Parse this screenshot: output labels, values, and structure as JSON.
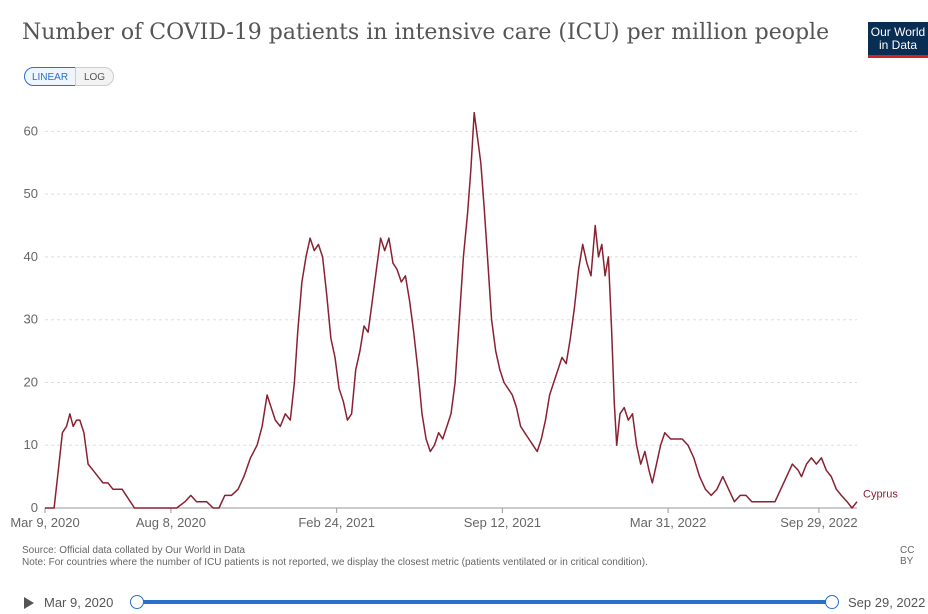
{
  "header": {
    "title": "Number of COVID-19 patients in intensive care (ICU) per million people",
    "logo_line1": "Our World",
    "logo_line2": "in Data",
    "scale_linear": "LINEAR",
    "scale_log": "LOG"
  },
  "colors": {
    "series": "#8a2131",
    "accent": "#2a70c9",
    "logo_bg": "#0a2e53",
    "logo_stripe": "#ce261e"
  },
  "chart_data": {
    "type": "line",
    "title": "Number of COVID-19 patients in intensive care (ICU) per million people",
    "ylim": [
      0,
      65
    ],
    "y_ticks": [
      0,
      10,
      20,
      30,
      40,
      50,
      60
    ],
    "x_ticks": [
      "Mar 9, 2020",
      "Aug 8, 2020",
      "Feb 24, 2021",
      "Sep 12, 2021",
      "Mar 31, 2022",
      "Sep 29, 2022"
    ],
    "grid": true,
    "series": [
      {
        "name": "Cyprus",
        "points": [
          [
            "2020-03-09",
            0
          ],
          [
            "2020-03-20",
            0
          ],
          [
            "2020-03-25",
            6
          ],
          [
            "2020-03-30",
            12
          ],
          [
            "2020-04-04",
            13
          ],
          [
            "2020-04-08",
            15
          ],
          [
            "2020-04-12",
            13
          ],
          [
            "2020-04-16",
            14
          ],
          [
            "2020-04-20",
            14
          ],
          [
            "2020-04-25",
            12
          ],
          [
            "2020-04-30",
            7
          ],
          [
            "2020-05-06",
            6
          ],
          [
            "2020-05-12",
            5
          ],
          [
            "2020-05-18",
            4
          ],
          [
            "2020-05-24",
            4
          ],
          [
            "2020-05-30",
            3
          ],
          [
            "2020-06-10",
            3
          ],
          [
            "2020-06-15",
            2
          ],
          [
            "2020-06-20",
            1
          ],
          [
            "2020-06-25",
            0
          ],
          [
            "2020-07-20",
            0
          ],
          [
            "2020-08-15",
            0
          ],
          [
            "2020-08-25",
            1
          ],
          [
            "2020-09-01",
            2
          ],
          [
            "2020-09-08",
            1
          ],
          [
            "2020-09-20",
            1
          ],
          [
            "2020-09-28",
            0
          ],
          [
            "2020-10-05",
            0
          ],
          [
            "2020-10-12",
            2
          ],
          [
            "2020-10-20",
            2
          ],
          [
            "2020-10-28",
            3
          ],
          [
            "2020-11-04",
            5
          ],
          [
            "2020-11-12",
            8
          ],
          [
            "2020-11-20",
            10
          ],
          [
            "2020-11-26",
            13
          ],
          [
            "2020-12-02",
            18
          ],
          [
            "2020-12-07",
            16
          ],
          [
            "2020-12-12",
            14
          ],
          [
            "2020-12-18",
            13
          ],
          [
            "2020-12-24",
            15
          ],
          [
            "2020-12-30",
            14
          ],
          [
            "2021-01-04",
            20
          ],
          [
            "2021-01-08",
            28
          ],
          [
            "2021-01-13",
            36
          ],
          [
            "2021-01-18",
            40
          ],
          [
            "2021-01-23",
            43
          ],
          [
            "2021-01-28",
            41
          ],
          [
            "2021-02-02",
            42
          ],
          [
            "2021-02-07",
            40
          ],
          [
            "2021-02-12",
            34
          ],
          [
            "2021-02-17",
            27
          ],
          [
            "2021-02-22",
            24
          ],
          [
            "2021-02-27",
            19
          ],
          [
            "2021-03-04",
            17
          ],
          [
            "2021-03-09",
            14
          ],
          [
            "2021-03-14",
            15
          ],
          [
            "2021-03-19",
            22
          ],
          [
            "2021-03-24",
            25
          ],
          [
            "2021-03-29",
            29
          ],
          [
            "2021-04-03",
            28
          ],
          [
            "2021-04-08",
            33
          ],
          [
            "2021-04-13",
            38
          ],
          [
            "2021-04-18",
            43
          ],
          [
            "2021-04-23",
            41
          ],
          [
            "2021-04-28",
            43
          ],
          [
            "2021-05-03",
            39
          ],
          [
            "2021-05-08",
            38
          ],
          [
            "2021-05-13",
            36
          ],
          [
            "2021-05-18",
            37
          ],
          [
            "2021-05-23",
            33
          ],
          [
            "2021-05-28",
            28
          ],
          [
            "2021-06-02",
            22
          ],
          [
            "2021-06-07",
            15
          ],
          [
            "2021-06-12",
            11
          ],
          [
            "2021-06-17",
            9
          ],
          [
            "2021-06-22",
            10
          ],
          [
            "2021-06-27",
            12
          ],
          [
            "2021-07-02",
            11
          ],
          [
            "2021-07-07",
            13
          ],
          [
            "2021-07-12",
            15
          ],
          [
            "2021-07-17",
            20
          ],
          [
            "2021-07-22",
            30
          ],
          [
            "2021-07-27",
            40
          ],
          [
            "2021-08-01",
            47
          ],
          [
            "2021-08-05",
            54
          ],
          [
            "2021-08-09",
            63
          ],
          [
            "2021-08-13",
            59
          ],
          [
            "2021-08-17",
            55
          ],
          [
            "2021-08-21",
            48
          ],
          [
            "2021-08-25",
            40
          ],
          [
            "2021-08-30",
            30
          ],
          [
            "2021-09-04",
            25
          ],
          [
            "2021-09-09",
            22
          ],
          [
            "2021-09-14",
            20
          ],
          [
            "2021-09-19",
            19
          ],
          [
            "2021-09-24",
            18
          ],
          [
            "2021-09-29",
            16
          ],
          [
            "2021-10-04",
            13
          ],
          [
            "2021-10-09",
            12
          ],
          [
            "2021-10-14",
            11
          ],
          [
            "2021-10-19",
            10
          ],
          [
            "2021-10-24",
            9
          ],
          [
            "2021-10-29",
            11
          ],
          [
            "2021-11-03",
            14
          ],
          [
            "2021-11-08",
            18
          ],
          [
            "2021-11-13",
            20
          ],
          [
            "2021-11-18",
            22
          ],
          [
            "2021-11-23",
            24
          ],
          [
            "2021-11-28",
            23
          ],
          [
            "2021-12-03",
            27
          ],
          [
            "2021-12-08",
            32
          ],
          [
            "2021-12-13",
            38
          ],
          [
            "2021-12-18",
            42
          ],
          [
            "2021-12-23",
            39
          ],
          [
            "2021-12-28",
            37
          ],
          [
            "2022-01-02",
            45
          ],
          [
            "2022-01-06",
            40
          ],
          [
            "2022-01-10",
            42
          ],
          [
            "2022-01-14",
            37
          ],
          [
            "2022-01-18",
            40
          ],
          [
            "2022-01-22",
            28
          ],
          [
            "2022-01-25",
            17
          ],
          [
            "2022-01-28",
            10
          ],
          [
            "2022-02-01",
            15
          ],
          [
            "2022-02-06",
            16
          ],
          [
            "2022-02-11",
            14
          ],
          [
            "2022-02-16",
            15
          ],
          [
            "2022-02-21",
            10
          ],
          [
            "2022-02-26",
            7
          ],
          [
            "2022-03-03",
            9
          ],
          [
            "2022-03-08",
            6
          ],
          [
            "2022-03-12",
            4
          ],
          [
            "2022-03-17",
            7
          ],
          [
            "2022-03-22",
            10
          ],
          [
            "2022-03-27",
            12
          ],
          [
            "2022-04-03",
            11
          ],
          [
            "2022-04-10",
            11
          ],
          [
            "2022-04-17",
            11
          ],
          [
            "2022-04-24",
            10
          ],
          [
            "2022-05-01",
            8
          ],
          [
            "2022-05-08",
            5
          ],
          [
            "2022-05-15",
            3
          ],
          [
            "2022-05-22",
            2
          ],
          [
            "2022-05-29",
            3
          ],
          [
            "2022-06-05",
            5
          ],
          [
            "2022-06-12",
            3
          ],
          [
            "2022-06-19",
            1
          ],
          [
            "2022-06-26",
            2
          ],
          [
            "2022-07-03",
            2
          ],
          [
            "2022-07-10",
            1
          ],
          [
            "2022-07-24",
            1
          ],
          [
            "2022-08-07",
            1
          ],
          [
            "2022-08-14",
            3
          ],
          [
            "2022-08-21",
            5
          ],
          [
            "2022-08-28",
            7
          ],
          [
            "2022-09-04",
            6
          ],
          [
            "2022-09-08",
            5
          ],
          [
            "2022-09-14",
            7
          ],
          [
            "2022-09-20",
            8
          ],
          [
            "2022-09-26",
            7
          ],
          [
            "2022-10-02",
            8
          ],
          [
            "2022-10-08",
            6
          ],
          [
            "2022-10-14",
            5
          ],
          [
            "2022-10-20",
            3
          ],
          [
            "2022-10-26",
            2
          ],
          [
            "2022-11-02",
            1
          ],
          [
            "2022-11-08",
            0
          ],
          [
            "2022-11-14",
            1
          ]
        ]
      }
    ]
  },
  "footer": {
    "source": "Source: Official data collated by Our World in Data",
    "note": "Note: For countries where the number of ICU patients is not reported, we display the closest metric (patients ventilated or in critical condition).",
    "license": "CC BY"
  },
  "timeline": {
    "start_label": "Mar 9, 2020",
    "end_label": "Sep 29, 2022"
  }
}
